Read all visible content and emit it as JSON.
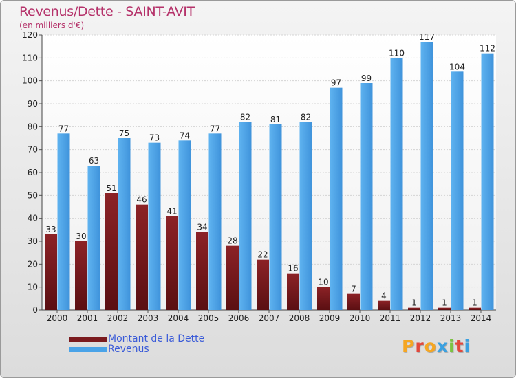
{
  "chart_data": {
    "type": "bar",
    "title": "Revenus/Dette - SAINT-AVIT",
    "subtitle": "(en milliers d'€)",
    "categories": [
      "2000",
      "2001",
      "2002",
      "2003",
      "2004",
      "2005",
      "2006",
      "2007",
      "2008",
      "2009",
      "2010",
      "2011",
      "2012",
      "2013",
      "2014"
    ],
    "series": [
      {
        "name": "Montant de la Dette",
        "color": "#7a1a1e",
        "values": [
          33,
          30,
          51,
          46,
          41,
          34,
          28,
          22,
          16,
          10,
          7,
          4,
          1,
          1,
          1
        ]
      },
      {
        "name": "Revenus",
        "color": "#4aa3e8",
        "values": [
          77,
          63,
          75,
          73,
          74,
          77,
          82,
          81,
          82,
          97,
          99,
          110,
          117,
          104,
          112
        ]
      }
    ],
    "ylim": [
      0,
      120
    ],
    "yticks": [
      0,
      10,
      20,
      30,
      40,
      50,
      60,
      70,
      80,
      90,
      100,
      110,
      120
    ],
    "grid": true,
    "legend_position": "bottom-left"
  },
  "logo": {
    "letters": [
      "P",
      "r",
      "o",
      "x",
      "i",
      "t",
      "i"
    ],
    "colors": [
      "#f5a623",
      "#e2473b",
      "#f5a623",
      "#3aa0e0",
      "#7cc242",
      "#e2473b",
      "#3aa0e0"
    ]
  }
}
